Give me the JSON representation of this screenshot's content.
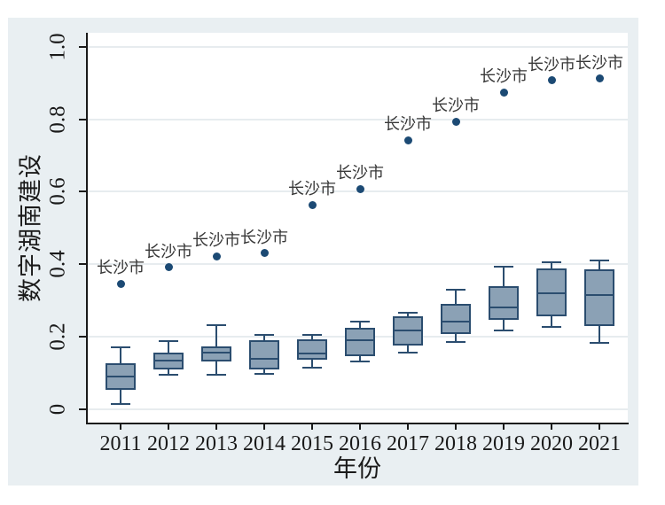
{
  "chart_data": {
    "type": "boxplot",
    "title": "",
    "xlabel": "年份",
    "ylabel": "数字湖南建设",
    "ylim": [
      0,
      1.0
    ],
    "yticks": [
      0,
      0.2,
      0.4,
      0.6,
      0.8,
      1.0
    ],
    "ytick_labels": [
      "0",
      "0.2",
      "0.4",
      "0.6",
      "0.8",
      "1.0"
    ],
    "grid": true,
    "legend": "none",
    "categories": [
      "2011",
      "2012",
      "2013",
      "2014",
      "2015",
      "2016",
      "2017",
      "2018",
      "2019",
      "2020",
      "2021"
    ],
    "outlier_series_name": "长沙市",
    "series": [
      {
        "year": "2011",
        "low": 0.014,
        "q1": 0.053,
        "median": 0.089,
        "q3": 0.125,
        "high": 0.171,
        "outlier": 0.346,
        "outlier_label": "长沙市"
      },
      {
        "year": "2012",
        "low": 0.094,
        "q1": 0.11,
        "median": 0.134,
        "q3": 0.156,
        "high": 0.187,
        "outlier": 0.391,
        "outlier_label": "长沙市"
      },
      {
        "year": "2013",
        "low": 0.095,
        "q1": 0.132,
        "median": 0.156,
        "q3": 0.173,
        "high": 0.232,
        "outlier": 0.422,
        "outlier_label": "长沙市"
      },
      {
        "year": "2014",
        "low": 0.097,
        "q1": 0.109,
        "median": 0.138,
        "q3": 0.19,
        "high": 0.204,
        "outlier": 0.43,
        "outlier_label": "长沙市"
      },
      {
        "year": "2015",
        "low": 0.114,
        "q1": 0.137,
        "median": 0.153,
        "q3": 0.193,
        "high": 0.204,
        "outlier": 0.564,
        "outlier_label": "长沙市"
      },
      {
        "year": "2016",
        "low": 0.13,
        "q1": 0.146,
        "median": 0.19,
        "q3": 0.224,
        "high": 0.24,
        "outlier": 0.608,
        "outlier_label": "长沙市"
      },
      {
        "year": "2017",
        "low": 0.155,
        "q1": 0.175,
        "median": 0.216,
        "q3": 0.257,
        "high": 0.265,
        "outlier": 0.742,
        "outlier_label": "长沙市"
      },
      {
        "year": "2018",
        "low": 0.186,
        "q1": 0.208,
        "median": 0.242,
        "q3": 0.291,
        "high": 0.33,
        "outlier": 0.794,
        "outlier_label": "长沙市"
      },
      {
        "year": "2019",
        "low": 0.216,
        "q1": 0.246,
        "median": 0.28,
        "q3": 0.34,
        "high": 0.394,
        "outlier": 0.875,
        "outlier_label": "长沙市"
      },
      {
        "year": "2020",
        "low": 0.226,
        "q1": 0.257,
        "median": 0.32,
        "q3": 0.388,
        "high": 0.405,
        "outlier": 0.908,
        "outlier_label": "长沙市"
      },
      {
        "year": "2021",
        "low": 0.183,
        "q1": 0.228,
        "median": 0.314,
        "q3": 0.386,
        "high": 0.41,
        "outlier": 0.913,
        "outlier_label": "长沙市"
      }
    ],
    "colors": {
      "canvas_bg": "#e9eff2",
      "plot_bg": "#ffffff",
      "grid": "#e7ecef",
      "axis": "#1a1a1a",
      "box_fill": "#8ba1b5",
      "box_border": "#2b4d6f",
      "outlier_dot": "#1c4a74",
      "outlier_text": "#383838"
    }
  }
}
